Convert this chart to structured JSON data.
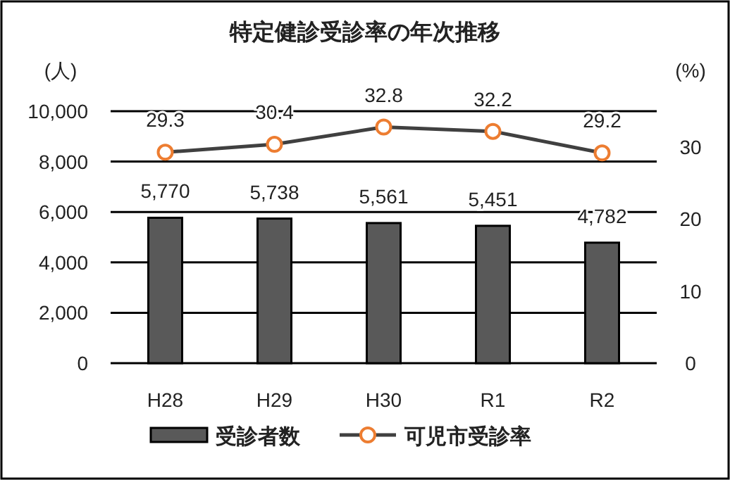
{
  "chart_data": {
    "type": "bar",
    "title": "特定健診受診率の年次推移",
    "ylabel": "(人)",
    "y2label": "(%)",
    "categories": [
      "H28",
      "H29",
      "H30",
      "R1",
      "R2"
    ],
    "series": [
      {
        "name": "受診者数",
        "color": "#595959",
        "values": [
          5770,
          5738,
          5561,
          5451,
          4782
        ],
        "value_labels": [
          "5,770",
          "5,738",
          "5,561",
          "5,451",
          "4,782"
        ]
      },
      {
        "name": "可児市受診率",
        "type": "line",
        "axis": "y2",
        "color": "#404040",
        "marker": "circle",
        "values": [
          29.3,
          30.4,
          32.8,
          32.2,
          29.2
        ]
      }
    ],
    "ylim": [
      0,
      10000
    ],
    "yticks": [
      {
        "value": 0,
        "label": "0"
      },
      {
        "value": 2000,
        "label": "2,000"
      },
      {
        "value": 4000,
        "label": "4,000"
      },
      {
        "value": 6000,
        "label": "6,000"
      },
      {
        "value": 8000,
        "label": "8,000"
      },
      {
        "value": 10000,
        "label": "10,000"
      }
    ],
    "y2lim": [
      0,
      35
    ],
    "y2ticks": [
      0,
      10,
      20,
      30
    ],
    "grid": "y",
    "legend": "bottom",
    "data_labels": true
  }
}
